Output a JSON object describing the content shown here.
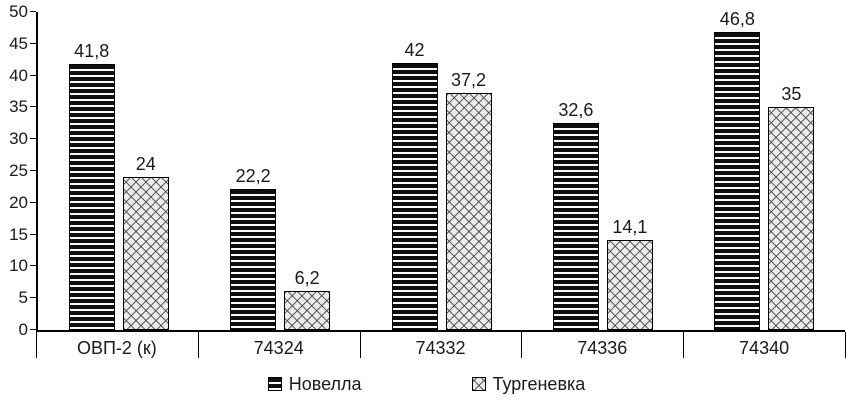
{
  "chart_data": {
    "type": "bar",
    "title": "",
    "xlabel": "",
    "ylabel": "",
    "categories": [
      "ОВП-2 (к)",
      "74324",
      "74332",
      "74336",
      "74340"
    ],
    "series": [
      {
        "name": "Новелла",
        "pattern": "stripes",
        "values": [
          41.8,
          22.2,
          42,
          32.6,
          46.8
        ],
        "value_labels": [
          "41,8",
          "22,2",
          "42",
          "32,6",
          "46,8"
        ]
      },
      {
        "name": "Тургеневка",
        "pattern": "diamonds",
        "values": [
          24,
          6.2,
          37.2,
          14.1,
          35
        ],
        "value_labels": [
          "24",
          "6,2",
          "37,2",
          "14,1",
          "35"
        ]
      }
    ],
    "ylim": [
      0,
      50
    ],
    "ytick_step": 5,
    "grid": false,
    "legend_position": "bottom"
  }
}
